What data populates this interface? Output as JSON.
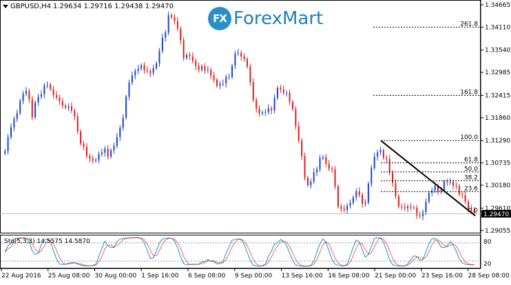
{
  "header": {
    "symbol_timeframe": "GBPUSD,H4",
    "ohlc": "1.29634 1.29716 1.29438 1.29470"
  },
  "logo": {
    "badge": "FX",
    "text": "ForexMart"
  },
  "indicator": {
    "label": "Sto(5,3,3) 14.5575 14.5870",
    "level_high": "80",
    "level_low": "20"
  },
  "colors": {
    "bull": "#1a3fd6",
    "bear": "#e0191b",
    "trendline": "#000000",
    "stoch_main": "#1a8fc9",
    "stoch_signal": "#e0191b",
    "bid_box": "#000000"
  },
  "chart_data": {
    "type": "candlestick",
    "symbol": "GBPUSD",
    "timeframe": "H4",
    "ylim": [
      1.29,
      1.3475
    ],
    "price_ticks": [
      "1.34665",
      "1.34110",
      "1.33540",
      "1.32985",
      "1.32415",
      "1.31860",
      "1.31290",
      "1.30735",
      "1.30180",
      "1.29610",
      "1.29055"
    ],
    "current_price": "1.29470",
    "time_labels": [
      "22 Aug 2016",
      "25 Aug 08:00",
      "30 Aug 00:00",
      "1 Sep 16:00",
      "6 Sep 08:00",
      "9 Sep 00:00",
      "13 Sep 16:00",
      "16 Sep 08:00",
      "21 Sep 00:00",
      "23 Sep 16:00",
      "28 Sep 08:00"
    ],
    "closes": [
      1.3103,
      1.3138,
      1.3162,
      1.3183,
      1.3197,
      1.3228,
      1.3245,
      1.3252,
      1.3232,
      1.3187,
      1.3224,
      1.3238,
      1.3244,
      1.3266,
      1.3268,
      1.3257,
      1.3242,
      1.3237,
      1.3227,
      1.3216,
      1.3211,
      1.3214,
      1.3203,
      1.3189,
      1.3152,
      1.3121,
      1.3113,
      1.3091,
      1.3084,
      1.3079,
      1.3081,
      1.3095,
      1.3099,
      1.3109,
      1.3089,
      1.3105,
      1.3116,
      1.3138,
      1.3161,
      1.3186,
      1.3238,
      1.3273,
      1.3291,
      1.3302,
      1.3308,
      1.3316,
      1.3304,
      1.3302,
      1.3297,
      1.3309,
      1.3321,
      1.3352,
      1.3385,
      1.3398,
      1.3441,
      1.3436,
      1.3426,
      1.3407,
      1.3378,
      1.3334,
      1.3342,
      1.3338,
      1.3327,
      1.3314,
      1.3305,
      1.3314,
      1.3303,
      1.3305,
      1.3291,
      1.328,
      1.3265,
      1.327,
      1.3271,
      1.3287,
      1.3287,
      1.3315,
      1.3345,
      1.3347,
      1.3338,
      1.3332,
      1.3313,
      1.3274,
      1.323,
      1.3208,
      1.3196,
      1.3199,
      1.32,
      1.3209,
      1.3204,
      1.3235,
      1.326,
      1.3256,
      1.3248,
      1.3248,
      1.3225,
      1.3207,
      1.3165,
      1.3129,
      1.309,
      1.3037,
      1.3018,
      1.3027,
      1.305,
      1.3058,
      1.3085,
      1.3088,
      1.3071,
      1.3059,
      1.3058,
      1.3015,
      1.2965,
      1.2959,
      1.2956,
      1.2967,
      1.2974,
      1.2988,
      1.3003,
      1.2994,
      1.2972,
      1.2975,
      1.3022,
      1.3061,
      1.3089,
      1.31,
      1.3105,
      1.3086,
      1.3083,
      1.3049,
      1.3024,
      1.2991,
      1.2965,
      1.2964,
      1.2961,
      1.2965,
      1.2963,
      1.2962,
      1.2943,
      1.2941,
      1.2951,
      1.2977,
      1.2999,
      1.3005,
      1.3016,
      1.3003,
      1.3005,
      1.3027,
      1.3025,
      1.3026,
      1.3017,
      1.3016,
      1.2995,
      1.2993,
      1.2977,
      1.2961,
      1.2959,
      1.2947
    ]
  },
  "fibonacci": {
    "levels": [
      {
        "label": "261.8",
        "price": 1.3411
      },
      {
        "label": "161.8",
        "price": 1.32415
      },
      {
        "label": "100.0",
        "price": 1.3129
      },
      {
        "label": "61.8",
        "price": 1.30735
      },
      {
        "label": "50.0",
        "price": 1.3051
      },
      {
        "label": "38.2",
        "price": 1.3029
      },
      {
        "label": "23.6",
        "price": 1.3002
      },
      {
        "label": "0.0",
        "price": 1.2947
      }
    ]
  }
}
